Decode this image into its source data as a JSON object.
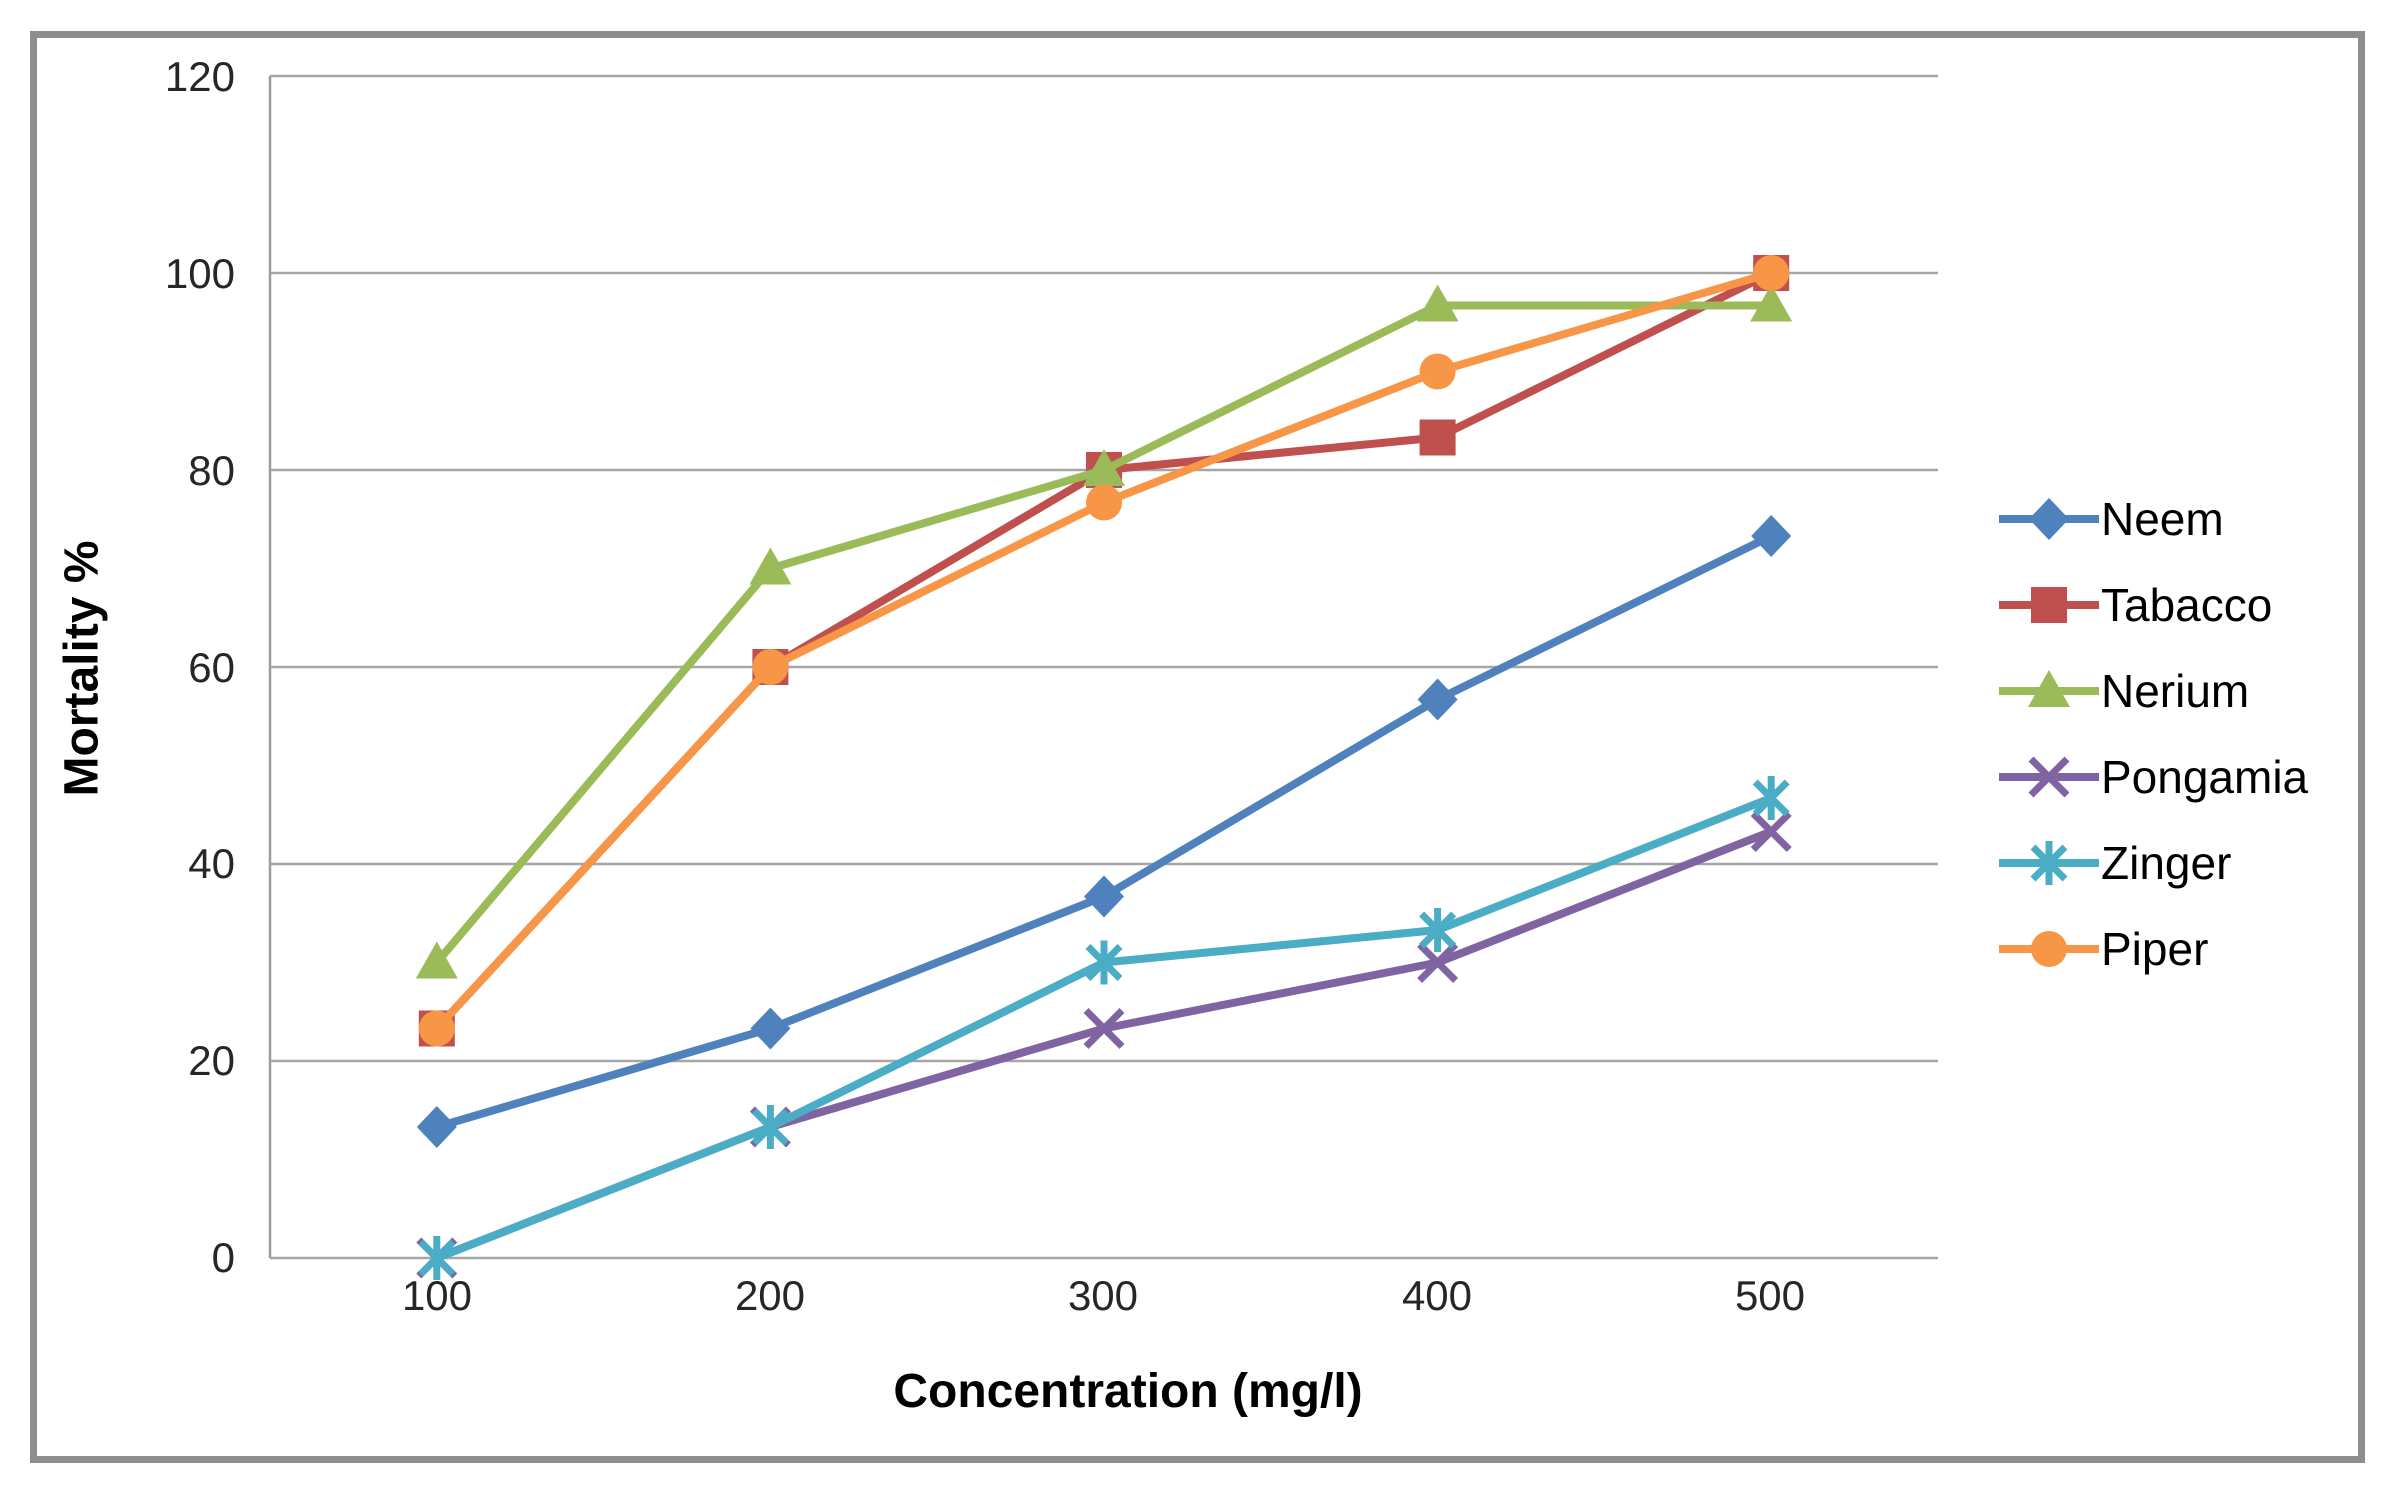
{
  "chart_data": {
    "type": "line",
    "title": "",
    "xlabel": "Concentration (mg/l)",
    "ylabel": "Mortality %",
    "x_categories": [
      100,
      200,
      300,
      400,
      500
    ],
    "x_tick_labels": [
      "100",
      "200",
      "300",
      "400",
      "500"
    ],
    "y_ticks": [
      0,
      20,
      40,
      60,
      80,
      100,
      120
    ],
    "y_tick_labels": [
      "0",
      "20",
      "40",
      "60",
      "80",
      "100",
      "120"
    ],
    "ylim": [
      0,
      120
    ],
    "grid": "horizontal",
    "legend_position": "right",
    "series": [
      {
        "name": "Neem",
        "color": "#4F81BD",
        "marker": "diamond",
        "values": [
          13.3,
          23.3,
          36.7,
          56.7,
          73.3
        ]
      },
      {
        "name": "Tabacco",
        "color": "#C0504D",
        "marker": "square",
        "values": [
          23.3,
          60.0,
          80.0,
          83.3,
          100.0
        ]
      },
      {
        "name": "Nerium",
        "color": "#9BBB59",
        "marker": "triangle",
        "values": [
          30.0,
          70.0,
          80.0,
          96.7,
          96.7
        ]
      },
      {
        "name": "Pongamia",
        "color": "#8064A2",
        "marker": "x",
        "values": [
          0.0,
          13.3,
          23.3,
          30.0,
          43.3
        ]
      },
      {
        "name": "Zinger",
        "color": "#4BACC6",
        "marker": "asterisk",
        "values": [
          0.0,
          13.3,
          30.0,
          33.3,
          46.7
        ]
      },
      {
        "name": "Piper",
        "color": "#F79646",
        "marker": "circle",
        "values": [
          23.3,
          60.0,
          76.7,
          90.0,
          100.0
        ]
      }
    ],
    "colors": {
      "grid": "#A6A6A6",
      "axis": "#9C9C9C",
      "frame_border": "#8D8D8D",
      "tick_text": "#262626",
      "title_text": "#000000"
    }
  }
}
